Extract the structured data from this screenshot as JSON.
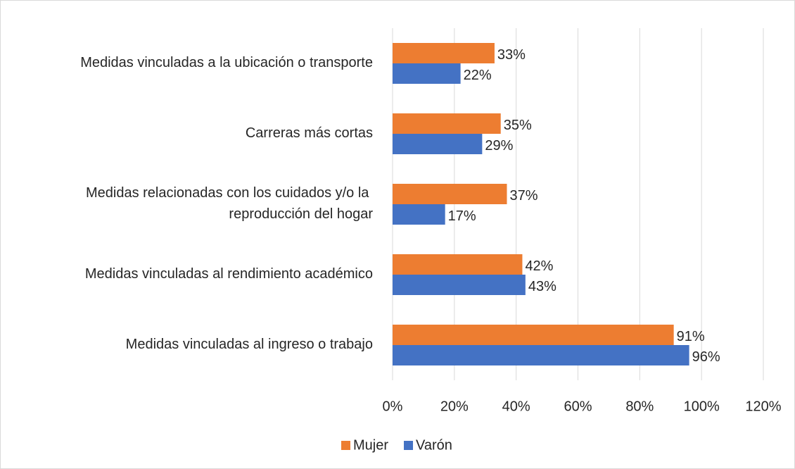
{
  "chart_data": {
    "type": "hbar",
    "categories": [
      "Medidas vinculadas a la ubicación o transporte",
      "Carreras más cortas",
      "Medidas relacionadas con los cuidados y/o la reproducción del hogar",
      "Medidas vinculadas al rendimiento académico",
      "Medidas vinculadas al ingreso o trabajo"
    ],
    "series": [
      {
        "name": "Mujer",
        "color": "#ED7D31",
        "values": [
          33,
          35,
          37,
          42,
          91
        ],
        "value_labels": [
          "33%",
          "35%",
          "37%",
          "42%",
          "91%"
        ]
      },
      {
        "name": "Varón",
        "color": "#4472C4",
        "values": [
          22,
          29,
          17,
          43,
          96
        ],
        "value_labels": [
          "22%",
          "29%",
          "17%",
          "43%",
          "96%"
        ]
      }
    ],
    "xlim": [
      0,
      120
    ],
    "xticks": [
      {
        "value": 0,
        "label": "0%"
      },
      {
        "value": 20,
        "label": "20%"
      },
      {
        "value": 40,
        "label": "40%"
      },
      {
        "value": 60,
        "label": "60%"
      },
      {
        "value": 80,
        "label": "80%"
      },
      {
        "value": 100,
        "label": "100%"
      },
      {
        "value": 120,
        "label": "120%"
      }
    ],
    "grid": true,
    "legend": "bottom"
  }
}
